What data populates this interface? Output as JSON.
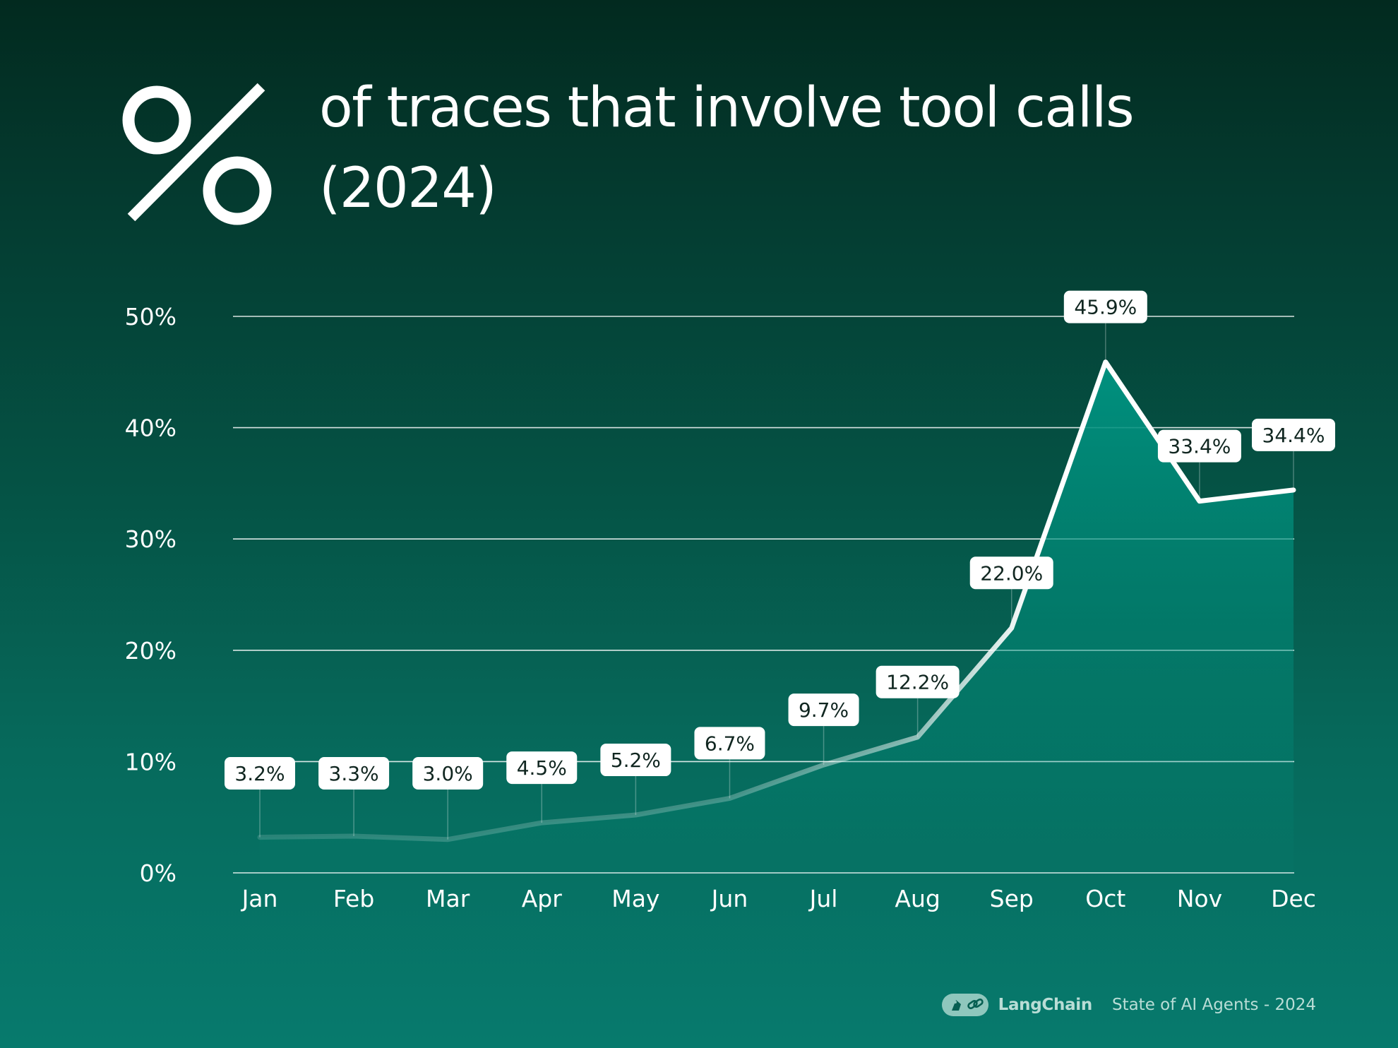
{
  "colors": {
    "background_top": "#022a1f",
    "background_bottom": "#077a6d",
    "area_fill": "#00897b",
    "line": "#ffffff",
    "label_bg": "#ffffff",
    "label_text": "#102620",
    "gridline": "#ffffff"
  },
  "header": {
    "icon": "percent-sign-icon"
  },
  "footer": {
    "brand_icon": "langchain-parrot-link-icon",
    "brand": "LangChain",
    "report": "State of AI Agents - 2024"
  },
  "chart_data": {
    "type": "area",
    "title_line1": "of traces that involve tool calls",
    "title_line2": "(2024)",
    "xlabel": "",
    "ylabel": "",
    "categories": [
      "Jan",
      "Feb",
      "Mar",
      "Apr",
      "May",
      "Jun",
      "Jul",
      "Aug",
      "Sep",
      "Oct",
      "Nov",
      "Dec"
    ],
    "values": [
      3.2,
      3.3,
      3.0,
      4.5,
      5.2,
      6.7,
      9.7,
      12.2,
      22.0,
      45.9,
      33.4,
      34.4
    ],
    "data_labels": [
      "3.2%",
      "3.3%",
      "3.0%",
      "4.5%",
      "5.2%",
      "6.7%",
      "9.7%",
      "12.2%",
      "22.0%",
      "45.9%",
      "33.4%",
      "34.4%"
    ],
    "yticks": [
      0,
      10,
      20,
      30,
      40,
      50
    ],
    "ytick_labels": [
      "0%",
      "10%",
      "20%",
      "30%",
      "40%",
      "50%"
    ],
    "ylim": [
      0,
      50
    ],
    "grid": true,
    "legend": "none"
  }
}
